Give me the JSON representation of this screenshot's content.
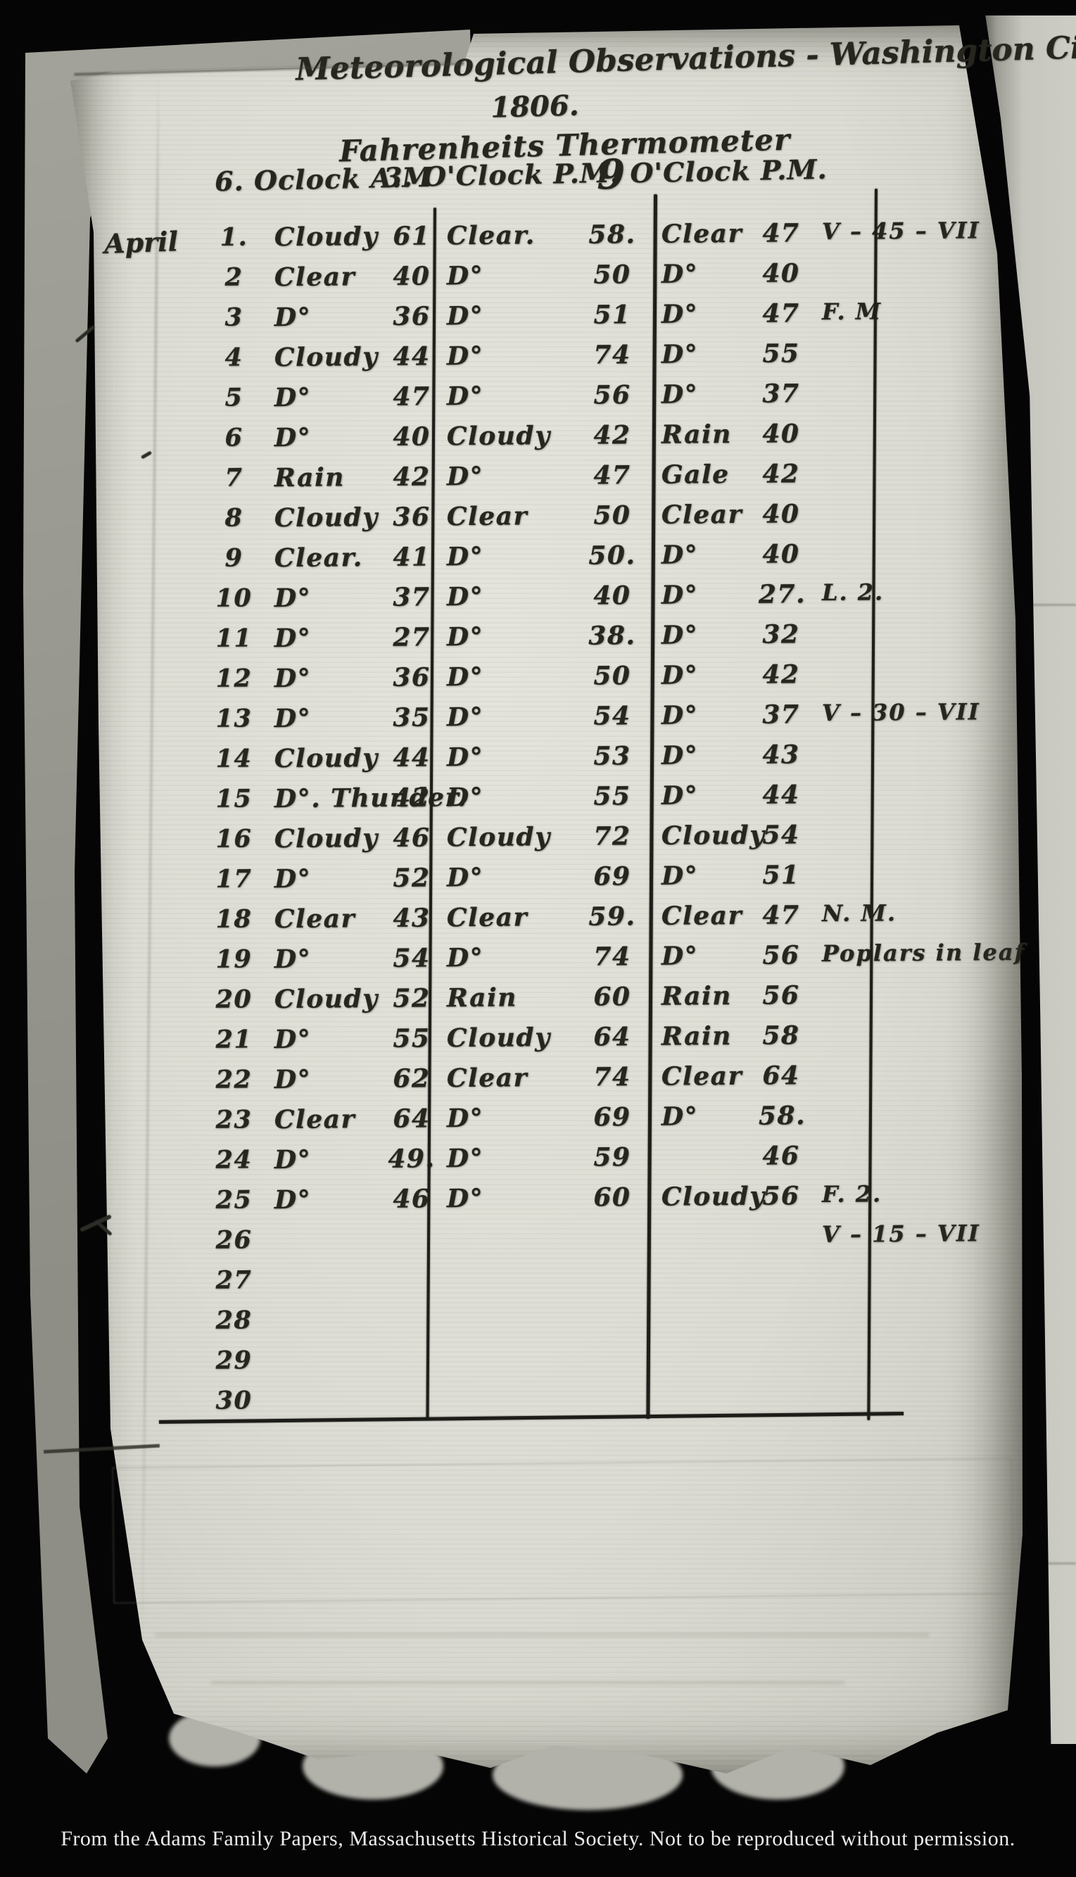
{
  "page": {
    "title": "Meteorological Observations - Washington City.",
    "year": "1806.",
    "subtitle": "Fahrenheits Thermometer",
    "headers": {
      "am": "6. Oclock A.M",
      "pm3": "3. O'Clock P.M.",
      "pm9_digit": "9",
      "pm9_rest": "O'Clock P.M."
    },
    "month": "April",
    "rows": [
      {
        "day": "1.",
        "am_cond": "Cloudy",
        "am_temp": "61",
        "pm3_cond": "Clear.",
        "pm3_temp": "58.",
        "pm9_cond": "Clear",
        "pm9_temp": "47",
        "note": "V – 45 – VII"
      },
      {
        "day": "2",
        "am_cond": "Clear",
        "am_temp": "40",
        "pm3_cond": "D°",
        "pm3_temp": "50",
        "pm9_cond": "D°",
        "pm9_temp": "40",
        "note": ""
      },
      {
        "day": "3",
        "am_cond": "D°",
        "am_temp": "36",
        "pm3_cond": "D°",
        "pm3_temp": "51",
        "pm9_cond": "D°",
        "pm9_temp": "47",
        "note": "F. M"
      },
      {
        "day": "4",
        "am_cond": "Cloudy",
        "am_temp": "44",
        "pm3_cond": "D°",
        "pm3_temp": "74",
        "pm9_cond": "D°",
        "pm9_temp": "55",
        "note": ""
      },
      {
        "day": "5",
        "am_cond": "D°",
        "am_temp": "47",
        "pm3_cond": "D°",
        "pm3_temp": "56",
        "pm9_cond": "D°",
        "pm9_temp": "37",
        "note": ""
      },
      {
        "day": "6",
        "am_cond": "D°",
        "am_temp": "40",
        "pm3_cond": "Cloudy",
        "pm3_temp": "42",
        "pm9_cond": "Rain",
        "pm9_temp": "40",
        "note": ""
      },
      {
        "day": "7",
        "am_cond": "Rain",
        "am_temp": "42",
        "pm3_cond": "D°",
        "pm3_temp": "47",
        "pm9_cond": "Gale",
        "pm9_temp": "42",
        "note": ""
      },
      {
        "day": "8",
        "am_cond": "Cloudy",
        "am_temp": "36",
        "pm3_cond": "Clear",
        "pm3_temp": "50",
        "pm9_cond": "Clear",
        "pm9_temp": "40",
        "note": ""
      },
      {
        "day": "9",
        "am_cond": "Clear.",
        "am_temp": "41",
        "pm3_cond": "D°",
        "pm3_temp": "50.",
        "pm9_cond": "D°",
        "pm9_temp": "40",
        "note": ""
      },
      {
        "day": "10",
        "am_cond": "D°",
        "am_temp": "37",
        "pm3_cond": "D°",
        "pm3_temp": "40",
        "pm9_cond": "D°",
        "pm9_temp": "27.",
        "note": "L. 2."
      },
      {
        "day": "11",
        "am_cond": "D°",
        "am_temp": "27",
        "pm3_cond": "D°",
        "pm3_temp": "38.",
        "pm9_cond": "D°",
        "pm9_temp": "32",
        "note": ""
      },
      {
        "day": "12",
        "am_cond": "D°",
        "am_temp": "36",
        "pm3_cond": "D°",
        "pm3_temp": "50",
        "pm9_cond": "D°",
        "pm9_temp": "42",
        "note": ""
      },
      {
        "day": "13",
        "am_cond": "D°",
        "am_temp": "35",
        "pm3_cond": "D°",
        "pm3_temp": "54",
        "pm9_cond": "D°",
        "pm9_temp": "37",
        "note": "V – 30 – VII"
      },
      {
        "day": "14",
        "am_cond": "Cloudy",
        "am_temp": "44",
        "pm3_cond": "D°",
        "pm3_temp": "53",
        "pm9_cond": "D°",
        "pm9_temp": "43",
        "note": ""
      },
      {
        "day": "15",
        "am_cond": "D°. Thunder.",
        "am_temp": "42",
        "pm3_cond": "D°",
        "pm3_temp": "55",
        "pm9_cond": "D°",
        "pm9_temp": "44",
        "note": ""
      },
      {
        "day": "16",
        "am_cond": "Cloudy",
        "am_temp": "46",
        "pm3_cond": "Cloudy",
        "pm3_temp": "72",
        "pm9_cond": "Cloudy",
        "pm9_temp": "54",
        "note": ""
      },
      {
        "day": "17",
        "am_cond": "D°",
        "am_temp": "52",
        "pm3_cond": "D°",
        "pm3_temp": "69",
        "pm9_cond": "D°",
        "pm9_temp": "51",
        "note": ""
      },
      {
        "day": "18",
        "am_cond": "Clear",
        "am_temp": "43",
        "pm3_cond": "Clear",
        "pm3_temp": "59.",
        "pm9_cond": "Clear",
        "pm9_temp": "47",
        "note": "N. M."
      },
      {
        "day": "19",
        "am_cond": "D°",
        "am_temp": "54",
        "pm3_cond": "D°",
        "pm3_temp": "74",
        "pm9_cond": "D°",
        "pm9_temp": "56",
        "note": "Poplars in leaf"
      },
      {
        "day": "20",
        "am_cond": "Cloudy",
        "am_temp": "52",
        "pm3_cond": "Rain",
        "pm3_temp": "60",
        "pm9_cond": "Rain",
        "pm9_temp": "56",
        "note": ""
      },
      {
        "day": "21",
        "am_cond": "D°",
        "am_temp": "55",
        "pm3_cond": "Cloudy",
        "pm3_temp": "64",
        "pm9_cond": "Rain",
        "pm9_temp": "58",
        "note": ""
      },
      {
        "day": "22",
        "am_cond": "D°",
        "am_temp": "62",
        "pm3_cond": "Clear",
        "pm3_temp": "74",
        "pm9_cond": "Clear",
        "pm9_temp": "64",
        "note": ""
      },
      {
        "day": "23",
        "am_cond": "Clear",
        "am_temp": "64",
        "pm3_cond": "D°",
        "pm3_temp": "69",
        "pm9_cond": "D°",
        "pm9_temp": "58.",
        "note": ""
      },
      {
        "day": "24",
        "am_cond": "D°",
        "am_temp": "49.",
        "pm3_cond": "D°",
        "pm3_temp": "59",
        "pm9_cond": "",
        "pm9_temp": "46",
        "note": ""
      },
      {
        "day": "25",
        "am_cond": "D°",
        "am_temp": "46",
        "pm3_cond": "D°",
        "pm3_temp": "60",
        "pm9_cond": "Cloudy",
        "pm9_temp": "56",
        "note": "F. 2."
      },
      {
        "day": "26",
        "am_cond": "",
        "am_temp": "",
        "pm3_cond": "",
        "pm3_temp": "",
        "pm9_cond": "",
        "pm9_temp": "",
        "note": "V – 15 – VII"
      },
      {
        "day": "27",
        "am_cond": "",
        "am_temp": "",
        "pm3_cond": "",
        "pm3_temp": "",
        "pm9_cond": "",
        "pm9_temp": "",
        "note": ""
      },
      {
        "day": "28",
        "am_cond": "",
        "am_temp": "",
        "pm3_cond": "",
        "pm3_temp": "",
        "pm9_cond": "",
        "pm9_temp": "",
        "note": ""
      },
      {
        "day": "29",
        "am_cond": "",
        "am_temp": "",
        "pm3_cond": "",
        "pm3_temp": "",
        "pm9_cond": "",
        "pm9_temp": "",
        "note": ""
      },
      {
        "day": "30",
        "am_cond": "",
        "am_temp": "",
        "pm3_cond": "",
        "pm3_temp": "",
        "pm9_cond": "",
        "pm9_temp": "",
        "note": ""
      }
    ]
  },
  "footer": {
    "credit": "From the Adams Family Papers, Massachusetts Historical Society. Not to be reproduced without permission."
  }
}
